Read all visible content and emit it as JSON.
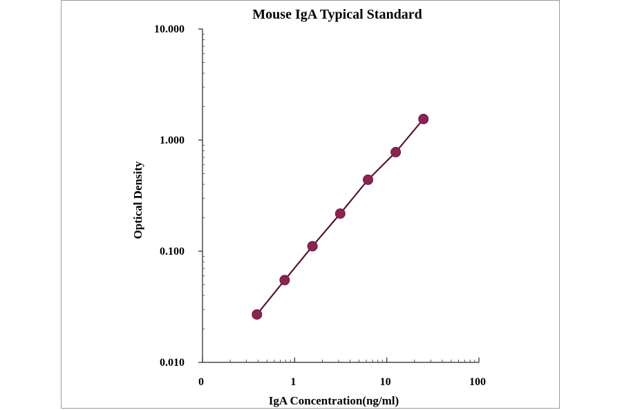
{
  "chart_data": {
    "type": "line",
    "title": "Mouse IgA Typical Standard",
    "xlabel": "IgA Concentration(ng/ml)",
    "ylabel": "Optical Density",
    "x_scale": "log",
    "y_scale": "log",
    "xlim": [
      0.1,
      100
    ],
    "ylim": [
      0.01,
      10
    ],
    "x_tick_values": [
      0.1,
      1,
      10,
      100
    ],
    "x_tick_labels": [
      "0",
      "1",
      "10",
      "100"
    ],
    "y_tick_values": [
      0.01,
      0.1,
      1,
      10
    ],
    "y_tick_labels": [
      "0.010",
      "0.100",
      "1.000",
      "10.000"
    ],
    "grid": false,
    "legend": "none",
    "colors": {
      "line": "#5a1030",
      "marker": "#8b2452",
      "marker_edge": "#6b1a3d"
    },
    "series": [
      {
        "x": [
          0.39,
          0.78,
          1.56,
          3.125,
          6.25,
          12.5,
          25
        ],
        "y": [
          0.027,
          0.055,
          0.111,
          0.218,
          0.44,
          0.78,
          1.55
        ]
      }
    ]
  }
}
